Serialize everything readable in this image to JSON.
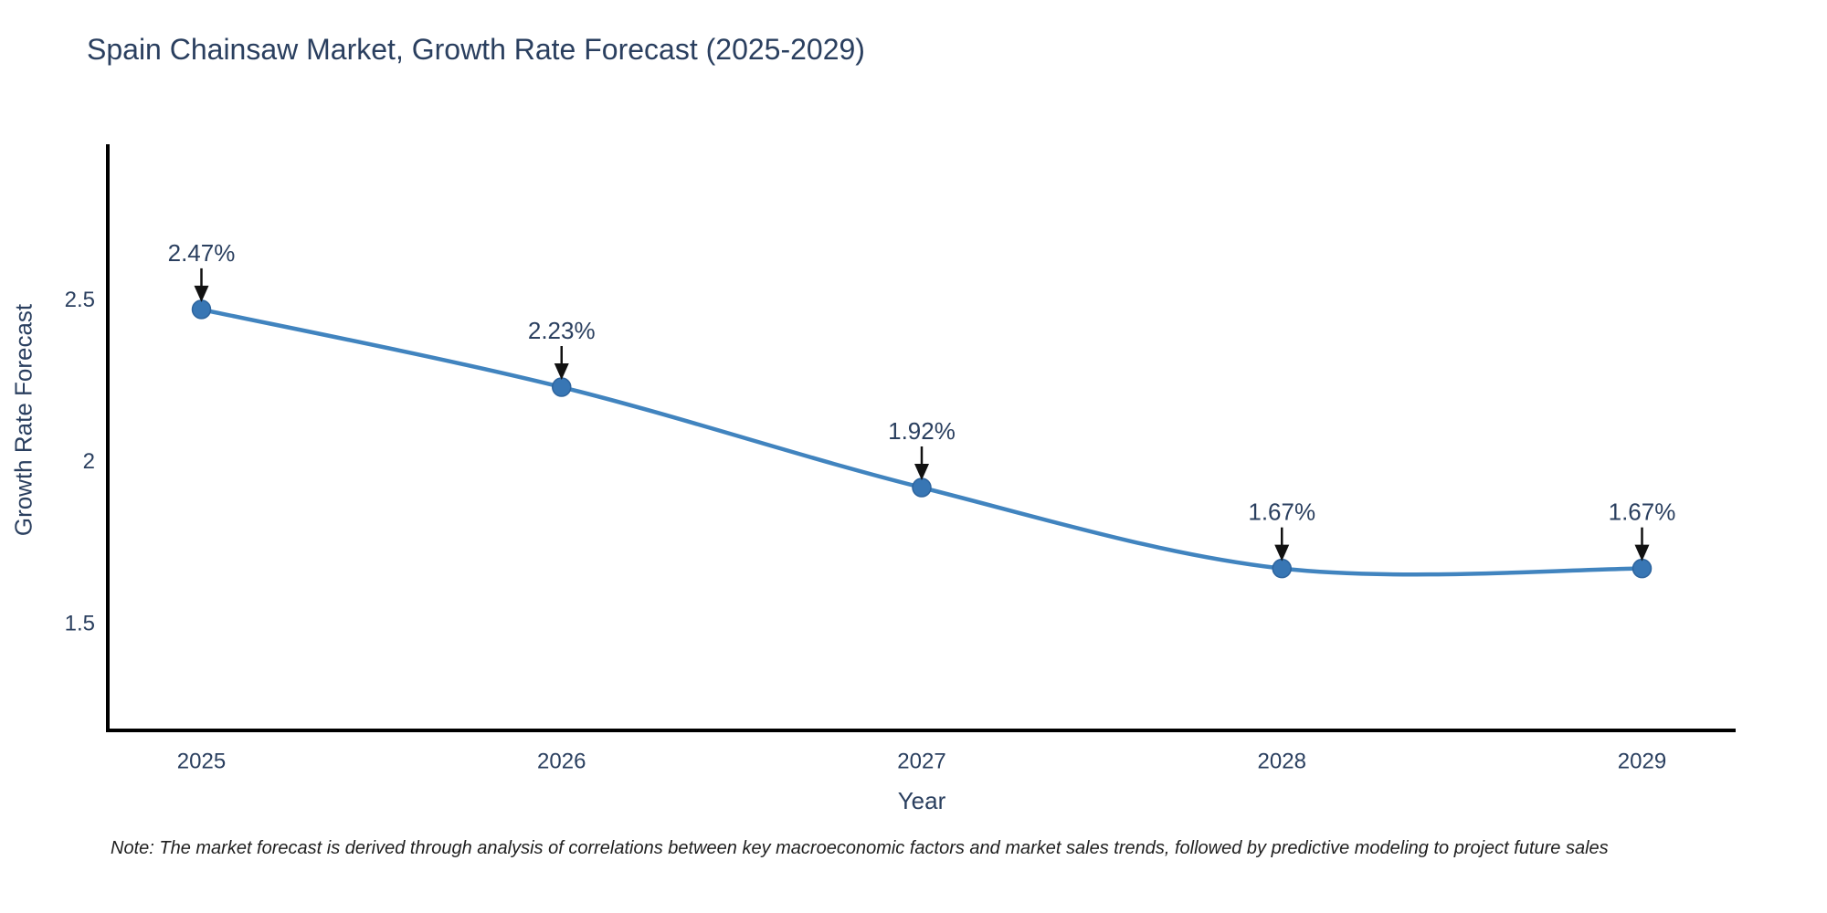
{
  "note": "Note: The market forecast is derived through analysis of correlations between key macroeconomic factors and market sales trends, followed by predictive modeling to project future sales",
  "chart_data": {
    "type": "line",
    "title": "Spain Chainsaw Market, Growth Rate Forecast (2025-2029)",
    "xlabel": "Year",
    "ylabel": "Growth Rate Forecast",
    "x": [
      2025,
      2026,
      2027,
      2028,
      2029
    ],
    "xtick_labels": [
      "2025",
      "2026",
      "2027",
      "2028",
      "2029"
    ],
    "series": [
      {
        "name": "Growth Rate Forecast",
        "values": [
          2.47,
          2.23,
          1.92,
          1.67,
          1.67
        ]
      }
    ],
    "point_labels": [
      "2.47%",
      "2.23%",
      "1.92%",
      "1.67%",
      "1.67%"
    ],
    "yticks": [
      2.5,
      2,
      1.5
    ],
    "ytick_labels": [
      "2.5",
      "2",
      "1.5"
    ],
    "xlim": [
      2024.74,
      2029.26
    ],
    "ylim": [
      1.17,
      2.98
    ],
    "grid": false,
    "legend": false,
    "line_shape": "spline",
    "colors": {
      "line": "#4184bf",
      "marker_fill": "#3876b4",
      "marker_edge": "#2d649e",
      "arrow": "#111111",
      "axis": "#000000",
      "text": "#2a3f5f"
    }
  }
}
